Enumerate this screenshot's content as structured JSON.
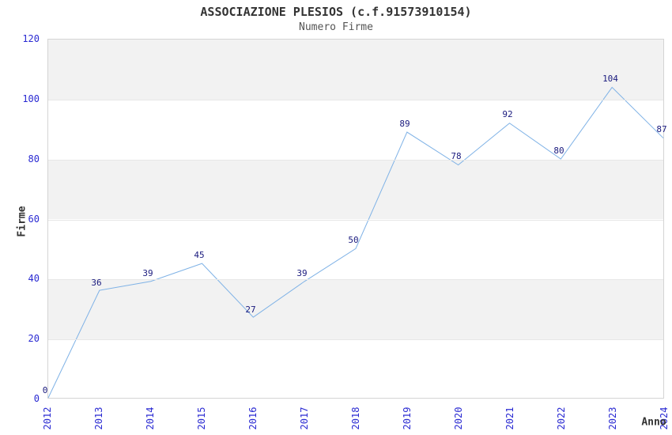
{
  "chart_data": {
    "type": "line",
    "title": "ASSOCIAZIONE PLESIOS (c.f.91573910154)",
    "subtitle": "Numero Firme",
    "xlabel": "Anno",
    "ylabel": "Firme",
    "categories": [
      "2012",
      "2013",
      "2014",
      "2015",
      "2016",
      "2017",
      "2018",
      "2019",
      "2020",
      "2021",
      "2022",
      "2023",
      "2024"
    ],
    "values": [
      0,
      36,
      39,
      45,
      27,
      39,
      50,
      89,
      78,
      92,
      80,
      104,
      87
    ],
    "point_labels": [
      "0",
      "36",
      "39",
      "45",
      "27",
      "39",
      "50",
      "89",
      "78",
      "92",
      "80",
      "104",
      "87"
    ],
    "ylim": [
      0,
      120
    ],
    "yticks": [
      0,
      20,
      40,
      60,
      80,
      100,
      120
    ],
    "grid": "horizontal bands every 20 units, alternating gray/white from top",
    "legend_position": "none",
    "point_labels_visible": true,
    "colors": {
      "line": "#7fb2e6",
      "point_label": "#1a1a7e",
      "tick_label": "#2a2ad2",
      "title": "#333333",
      "subtitle": "#555555",
      "band": "#f2f2f2",
      "gridline": "#e7e7e7",
      "plot_border": "#d4d4d4",
      "axis_title": "#333333"
    }
  }
}
